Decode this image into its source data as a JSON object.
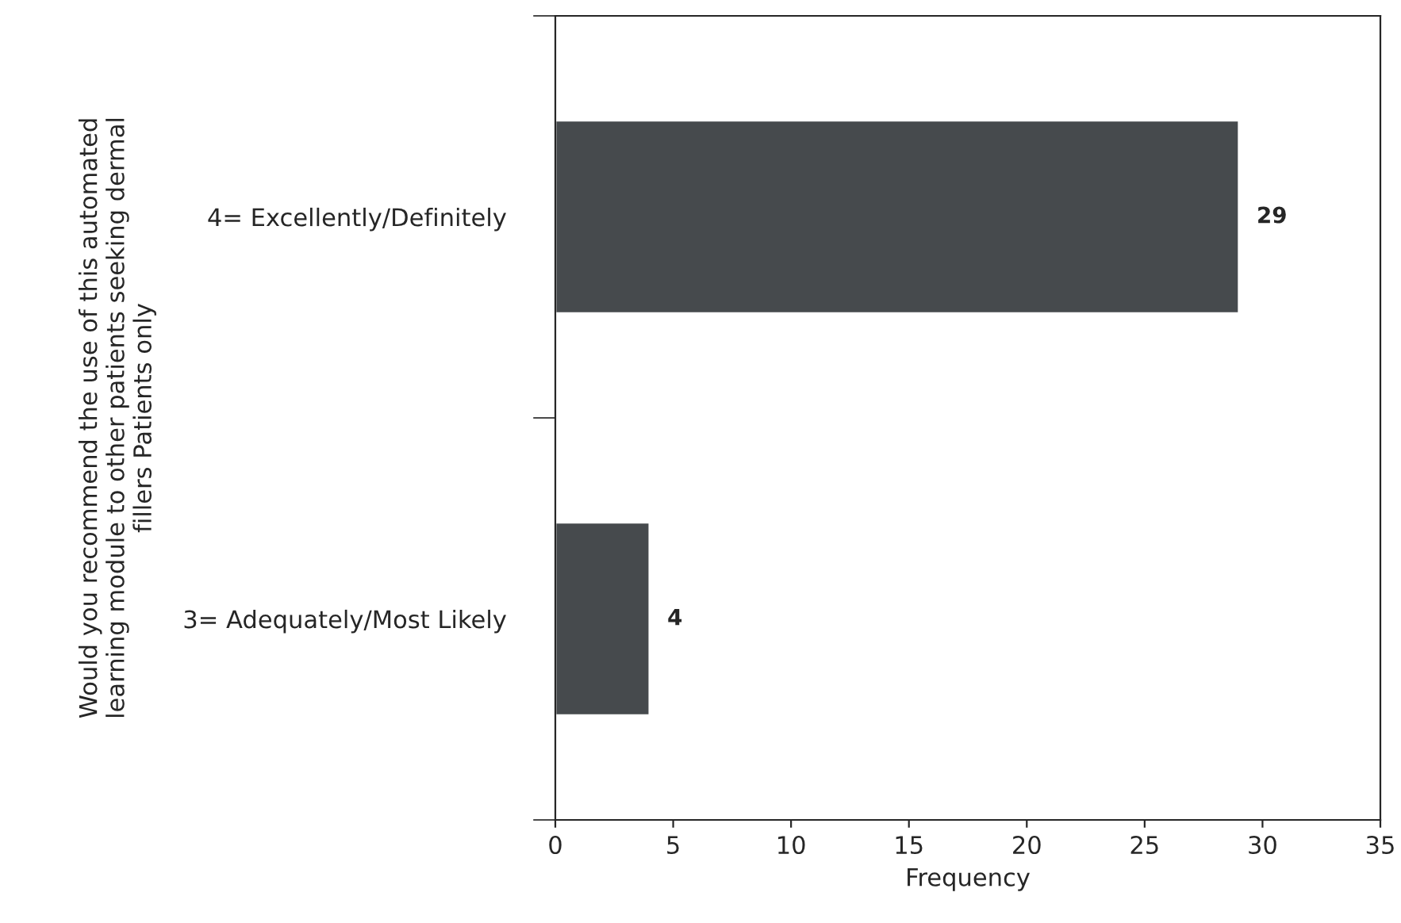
{
  "chart_data": {
    "type": "bar",
    "orientation": "horizontal",
    "categories": [
      "4= Excellently/Definitely",
      "3= Adequately/Most Likely"
    ],
    "values": [
      29,
      4
    ],
    "color": "#464a4d",
    "data_labels": true,
    "xlabel": "Frequency",
    "ylabel": "Would you recommend the use of this automated\nlearning module to other patients seeking dermal\nfillers Patients only",
    "xlim": [
      0,
      35
    ],
    "xticks": [
      0,
      5,
      10,
      15,
      20,
      25,
      30,
      35
    ],
    "grid": false,
    "legend": false
  }
}
